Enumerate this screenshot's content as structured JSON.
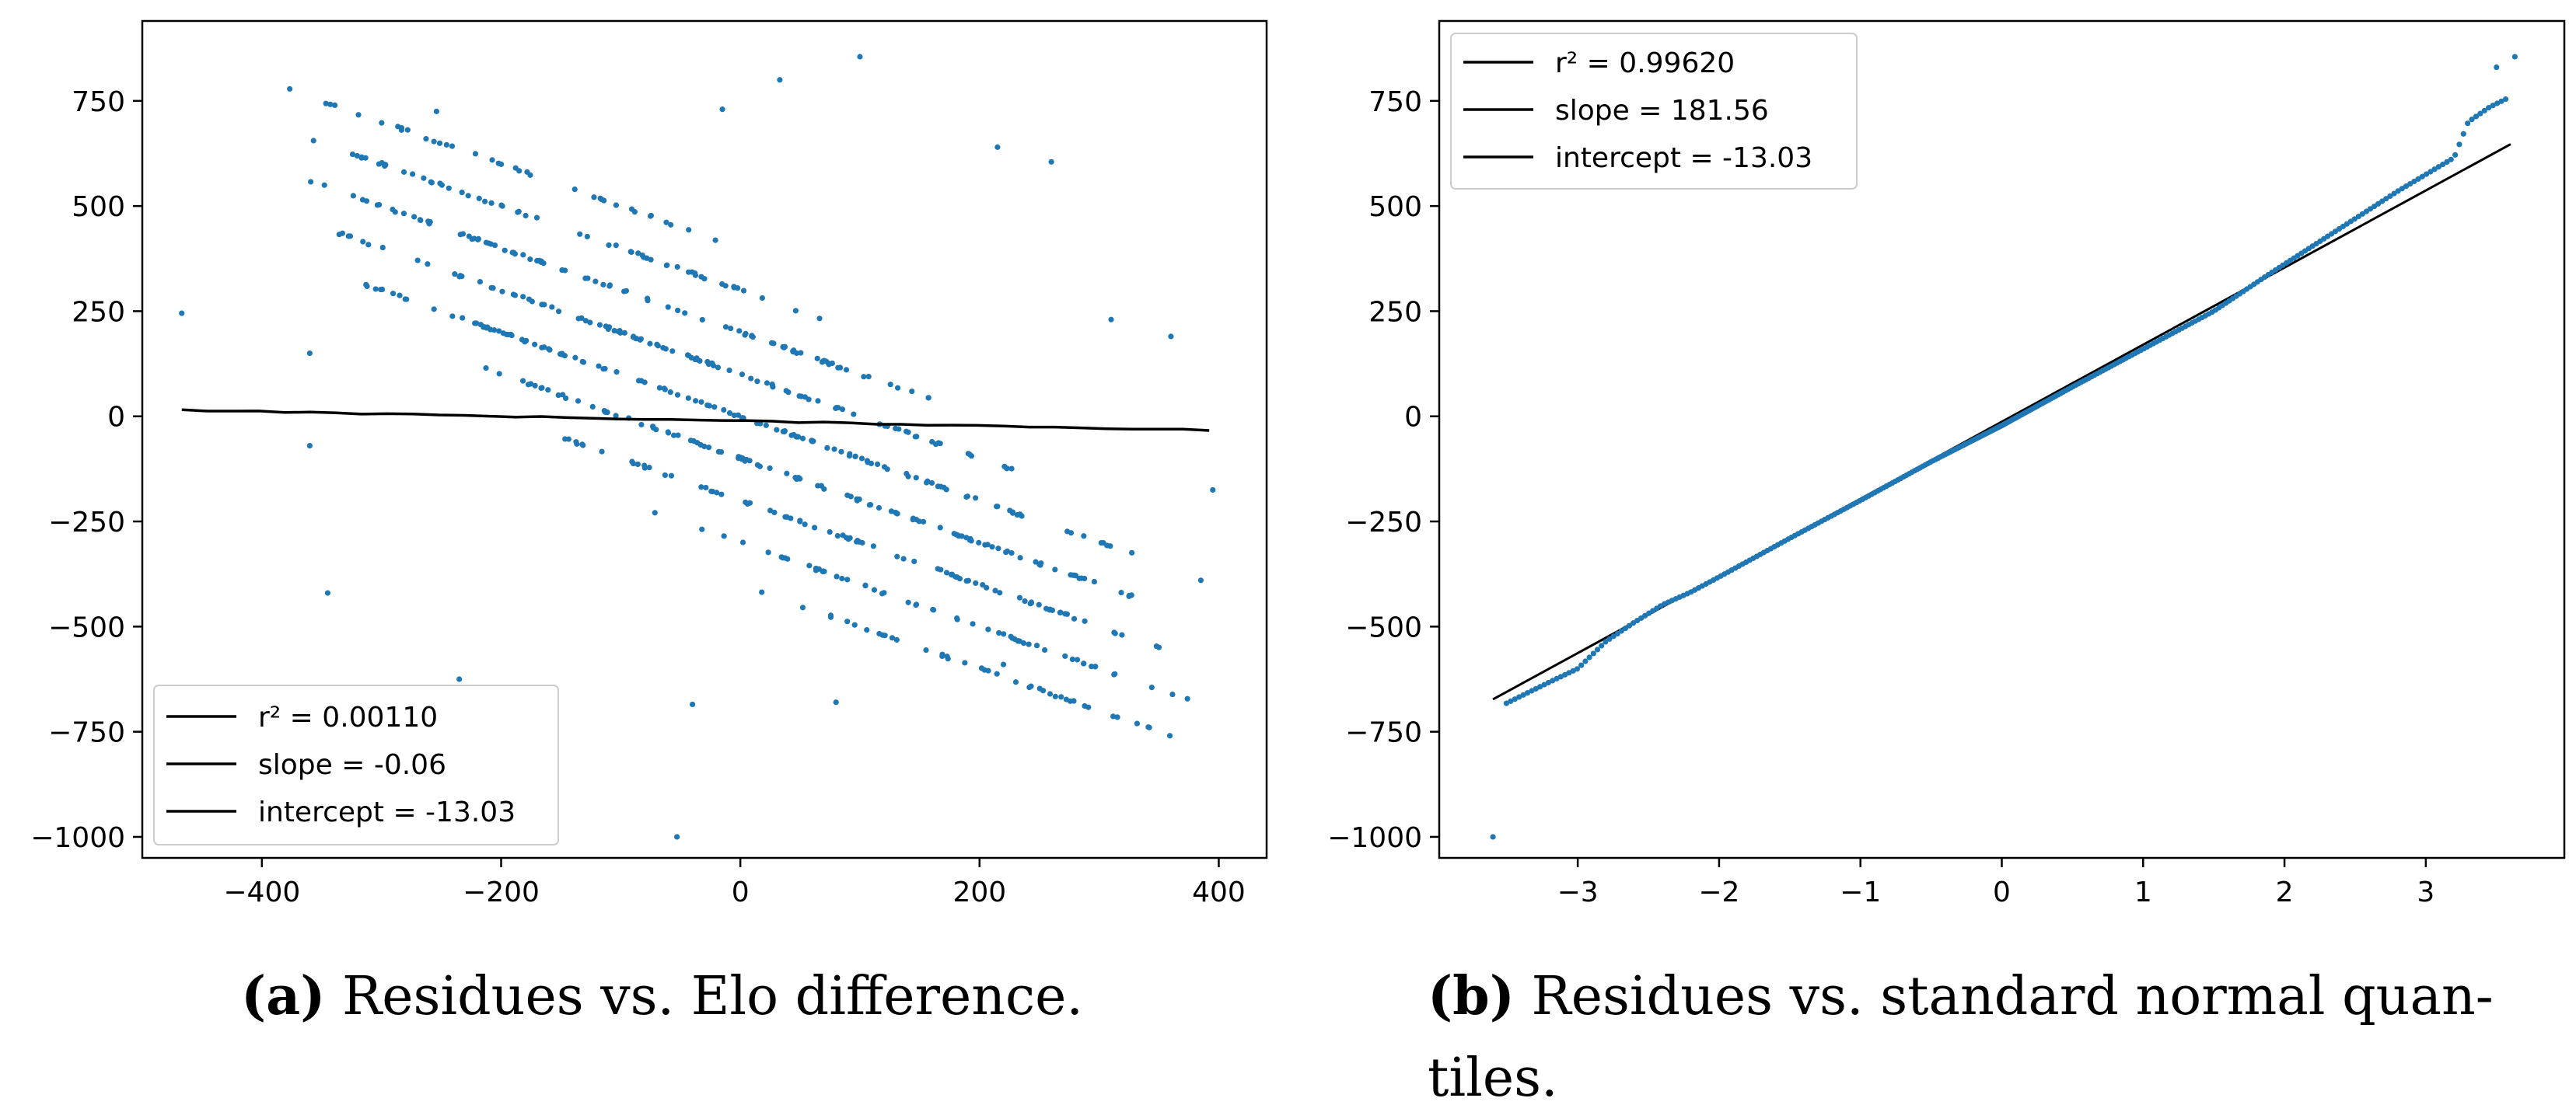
{
  "colors": {
    "points": "#1f77b4",
    "fit_line": "#000000",
    "axes": "#000000"
  },
  "chart_data": [
    {
      "type": "scatter",
      "id": "a",
      "title": "",
      "xlabel": "",
      "ylabel": "",
      "xlim": [
        -500,
        440
      ],
      "ylim": [
        -1050,
        940
      ],
      "xticks": [
        -400,
        -200,
        0,
        200,
        400
      ],
      "xtick_labels": [
        "−400",
        "−200",
        "0",
        "200",
        "400"
      ],
      "yticks": [
        750,
        500,
        250,
        0,
        -250,
        -500,
        -750,
        -1000
      ],
      "ytick_labels": [
        "750",
        "500",
        "250",
        "0",
        "−250",
        "−500",
        "−750",
        "−1000"
      ],
      "grid": false,
      "legend_position": "lower-left",
      "legend": [
        "r² = 0.00110",
        "slope = -0.06",
        "intercept = -13.03"
      ],
      "band_slope": -1.0,
      "band_offsets": [
        -400,
        -300,
        -200,
        -100,
        0,
        100,
        200,
        300,
        400
      ],
      "band_x_range": [
        -330,
        330
      ],
      "fit_line": {
        "x": [
          -467,
          392
        ],
        "y": [
          15,
          -33
        ]
      },
      "outliers": [
        [
          -467,
          245
        ],
        [
          -254,
          725
        ],
        [
          -53,
          -1000
        ],
        [
          100,
          855
        ],
        [
          33,
          800
        ],
        [
          -360,
          150
        ],
        [
          -360,
          -70
        ],
        [
          -345,
          -420
        ],
        [
          385,
          -390
        ],
        [
          395,
          -175
        ],
        [
          360,
          190
        ],
        [
          310,
          230
        ],
        [
          -235,
          -625
        ],
        [
          -40,
          -685
        ],
        [
          80,
          -680
        ],
        [
          220,
          -590
        ],
        [
          260,
          605
        ],
        [
          215,
          640
        ],
        [
          -15,
          730
        ]
      ],
      "caption_bold": "(a)",
      "caption": " Residues vs. Elo difference."
    },
    {
      "type": "scatter",
      "id": "b",
      "title": "",
      "xlabel": "",
      "ylabel": "",
      "xlim": [
        -3.98,
        3.98
      ],
      "ylim": [
        -1050,
        940
      ],
      "xticks": [
        -3,
        -2,
        -1,
        0,
        1,
        2,
        3
      ],
      "xtick_labels": [
        "−3",
        "−2",
        "−1",
        "0",
        "1",
        "2",
        "3"
      ],
      "yticks": [
        750,
        500,
        250,
        0,
        -250,
        -500,
        -750,
        -1000
      ],
      "ytick_labels": [
        "750",
        "500",
        "250",
        "0",
        "−250",
        "−500",
        "−750",
        "−1000"
      ],
      "grid": false,
      "legend_position": "upper-left",
      "legend": [
        "r² = 0.99620",
        "slope = 181.56",
        "intercept = -13.03"
      ],
      "fit_line": {
        "x": [
          -3.6,
          3.6
        ],
        "y": [
          -673,
          647
        ]
      },
      "qq_curve": [
        [
          -3.52,
          -685
        ],
        [
          -3.4,
          -665
        ],
        [
          -3.2,
          -632
        ],
        [
          -3.0,
          -600
        ],
        [
          -2.8,
          -535
        ],
        [
          -2.6,
          -490
        ],
        [
          -2.4,
          -448
        ],
        [
          -2.2,
          -418
        ],
        [
          -2.0,
          -382
        ],
        [
          -1.5,
          -290
        ],
        [
          -1.0,
          -200
        ],
        [
          -0.5,
          -108
        ],
        [
          0.0,
          -22
        ],
        [
          0.5,
          70
        ],
        [
          1.0,
          160
        ],
        [
          1.5,
          250
        ],
        [
          1.9,
          340
        ],
        [
          2.2,
          405
        ],
        [
          2.5,
          470
        ],
        [
          2.8,
          535
        ],
        [
          3.0,
          575
        ],
        [
          3.2,
          615
        ],
        [
          3.3,
          700
        ],
        [
          3.45,
          735
        ],
        [
          3.6,
          760
        ]
      ],
      "qq_outliers": [
        [
          -3.6,
          -1000
        ],
        [
          3.5,
          830
        ],
        [
          3.63,
          855
        ]
      ],
      "caption_bold": "(b)",
      "caption": " Residues vs. standard normal quan-",
      "caption_line2": "tiles."
    }
  ]
}
